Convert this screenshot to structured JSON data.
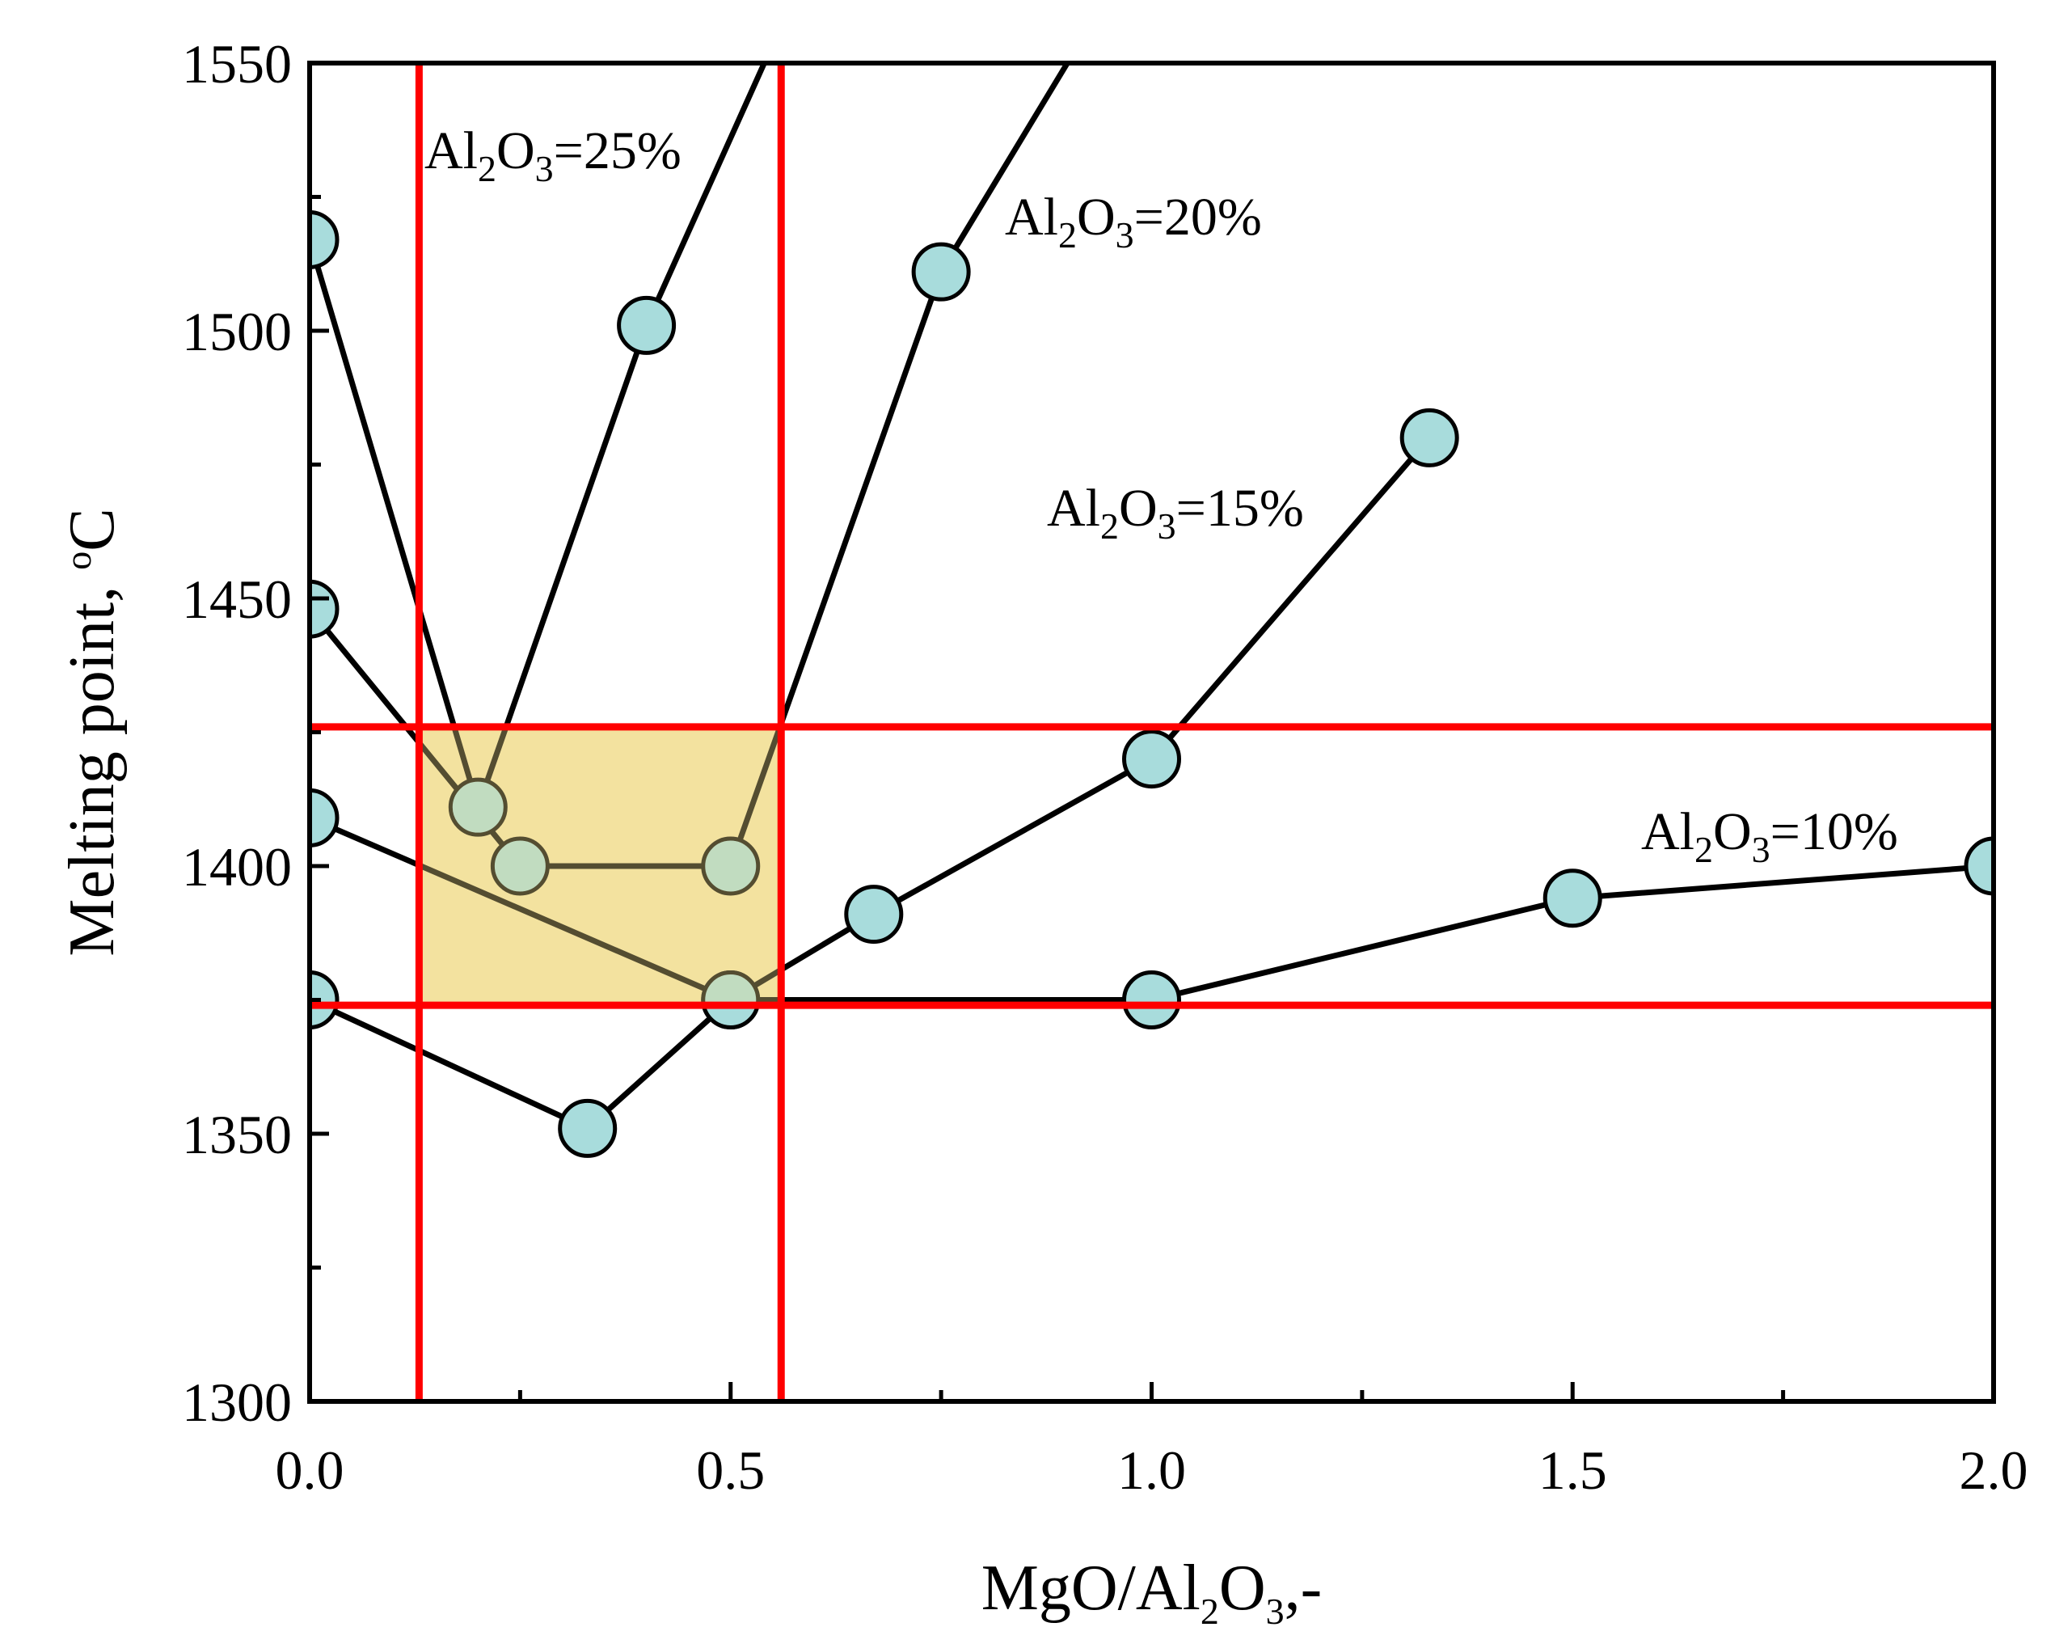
{
  "chart_data": {
    "type": "line",
    "title": "",
    "xlabel": {
      "main": "MgO/Al",
      "sub": "2",
      "mid": "O",
      "sub2": "3",
      "tail": ",-"
    },
    "ylabel": {
      "main": "Melting point, ",
      "sup": "o",
      "tail": "C"
    },
    "xlim": [
      0.0,
      2.0
    ],
    "ylim": [
      1300,
      1550
    ],
    "x_ticks": [
      "0.0",
      "0.5",
      "1.0",
      "1.5",
      "2.0"
    ],
    "x_tick_values": [
      0.0,
      0.5,
      1.0,
      1.5,
      2.0
    ],
    "x_minor_ticks": [
      0.25,
      0.75,
      1.25,
      1.75
    ],
    "y_ticks": [
      "1300",
      "1350",
      "1400",
      "1450",
      "1500",
      "1550"
    ],
    "y_tick_values": [
      1300,
      1350,
      1400,
      1450,
      1500,
      1550
    ],
    "y_minor_ticks": [
      1325,
      1375,
      1425,
      1475,
      1525
    ],
    "series": [
      {
        "name": "Al2O3=10%",
        "label_parts": [
          "Al",
          "2",
          "O",
          "3",
          "=10%"
        ],
        "x": [
          0.0,
          0.33,
          0.5,
          1.0,
          1.5,
          2.0
        ],
        "y": [
          1375,
          1351,
          1375,
          1375,
          1394,
          1400
        ]
      },
      {
        "name": "Al2O3=15%",
        "label_parts": [
          "Al",
          "2",
          "O",
          "3",
          "=15%"
        ],
        "x": [
          0.0,
          0.5,
          0.67,
          1.0,
          1.33
        ],
        "y": [
          1409,
          1375,
          1391,
          1420,
          1480
        ]
      },
      {
        "name": "Al2O3=20%",
        "label_parts": [
          "Al",
          "2",
          "O",
          "3",
          "=20%"
        ],
        "x": [
          0.0,
          0.25,
          0.5,
          0.75,
          0.9
        ],
        "y": [
          1448,
          1400,
          1400,
          1511,
          1550
        ]
      },
      {
        "name": "Al2O3=25%",
        "label_parts": [
          "Al",
          "2",
          "O",
          "3",
          "=25%"
        ],
        "x": [
          0.0,
          0.2,
          0.4,
          0.54
        ],
        "y": [
          1517,
          1411,
          1501,
          1550
        ]
      }
    ],
    "reference_lines": {
      "vertical_x": [
        0.13,
        0.56
      ],
      "horizontal_y": [
        1426,
        1374
      ]
    },
    "highlight_region": {
      "x": [
        0.13,
        0.56
      ],
      "y": [
        1374,
        1426
      ]
    },
    "colors": {
      "marker_fill": "#a8dcdc",
      "marker_edge": "#000000",
      "line": "#000000",
      "reference": "#ff0000",
      "region": "#f2dc8c"
    }
  }
}
